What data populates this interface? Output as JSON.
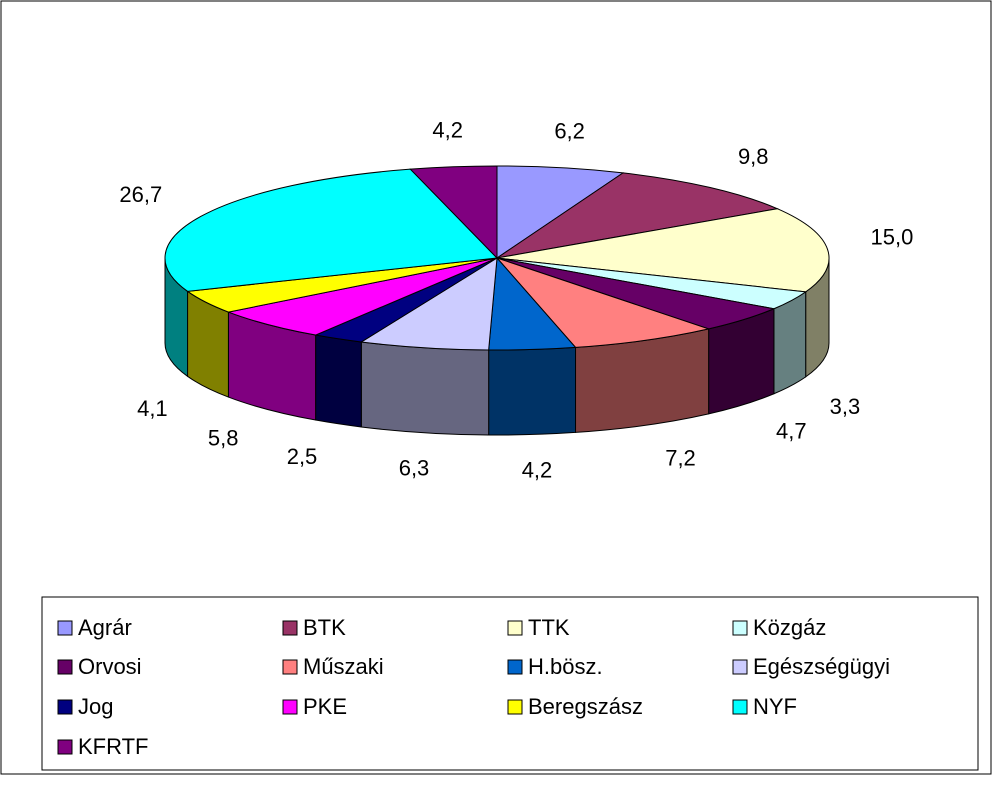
{
  "chart_data": {
    "type": "pie3d",
    "categories": [
      "Agrár",
      "BTK",
      "TTK",
      "Közgáz",
      "Orvosi",
      "Műszaki",
      "H.bösz.",
      "Egészségügyi",
      "Jog",
      "PKE",
      "Beregszász",
      "NYF",
      "KFRTF"
    ],
    "values": [
      6.2,
      9.8,
      15.0,
      3.3,
      4.7,
      7.2,
      4.2,
      6.3,
      2.5,
      5.8,
      4.1,
      26.7,
      4.2
    ],
    "value_labels": [
      "6,2",
      "9,8",
      "15,0",
      "3,3",
      "4,7",
      "7,2",
      "4,2",
      "6,3",
      "2,5",
      "5,8",
      "4,1",
      "26,7",
      "4,2"
    ],
    "colors": [
      "#9999ff",
      "#993366",
      "#ffffcc",
      "#ccffff",
      "#660066",
      "#ff8080",
      "#0066cc",
      "#ccccff",
      "#000080",
      "#ff00ff",
      "#ffff00",
      "#00ffff",
      "#800080"
    ],
    "legend": "bottom"
  }
}
